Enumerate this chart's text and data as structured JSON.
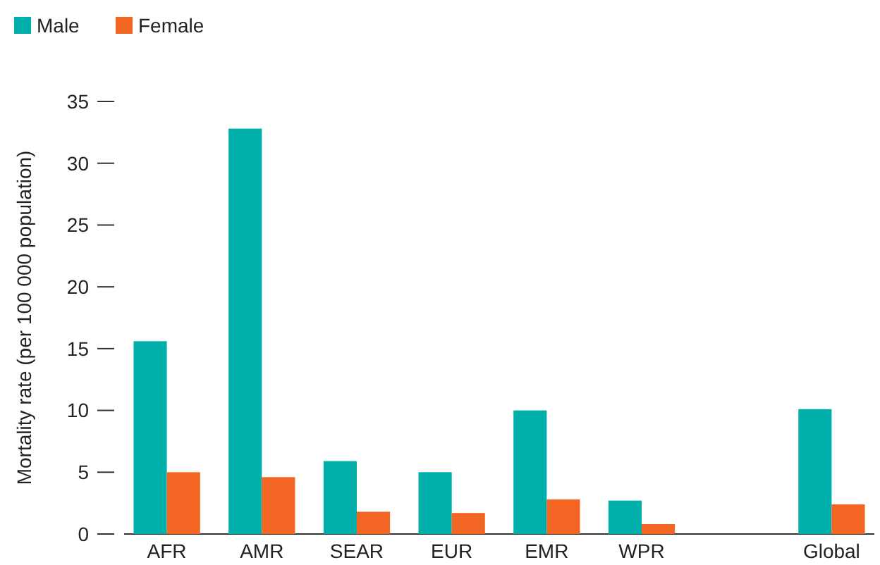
{
  "chart_data": {
    "type": "bar",
    "ylabel": "Mortality rate (per 100 000 population)",
    "categories": [
      "AFR",
      "AMR",
      "SEAR",
      "EUR",
      "EMR",
      "WPR",
      null,
      "Global"
    ],
    "series": [
      {
        "name": "Male",
        "color": "#00afaa",
        "values": [
          15.6,
          32.8,
          5.9,
          5.0,
          10.0,
          2.7,
          null,
          10.1
        ]
      },
      {
        "name": "Female",
        "color": "#f26522",
        "values": [
          5.0,
          4.6,
          1.8,
          1.7,
          2.8,
          0.8,
          null,
          2.4
        ]
      }
    ],
    "ylim": [
      0,
      35
    ],
    "yticks": [
      0,
      5,
      10,
      15,
      20,
      25,
      30,
      35
    ],
    "grid": false,
    "legend": "top left"
  }
}
